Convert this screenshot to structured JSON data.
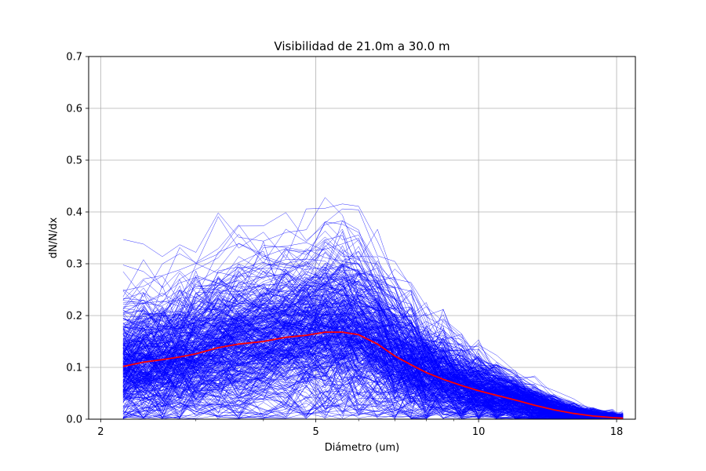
{
  "chart_data": {
    "type": "line",
    "title": "Visibilidad de 21.0m a 30.0 m",
    "xlabel": "Diámetro (um)",
    "ylabel": "dN/N/dx",
    "x_scale": "log",
    "xlim": [
      1.9,
      19.5
    ],
    "ylim": [
      0,
      0.7
    ],
    "x_ticks": [
      2,
      5,
      10,
      18
    ],
    "x_tick_labels": [
      "2",
      "5",
      "10",
      "18"
    ],
    "y_ticks": [
      0.0,
      0.1,
      0.2,
      0.3,
      0.4,
      0.5,
      0.6,
      0.7
    ],
    "y_tick_labels": [
      "0.0",
      "0.1",
      "0.2",
      "0.3",
      "0.4",
      "0.5",
      "0.6",
      "0.7"
    ],
    "grid": true,
    "individual_series_color": "#0000ff",
    "mean_series_color": "#ff0000",
    "individual_series_count": 400,
    "x": [
      2.2,
      2.4,
      2.6,
      2.8,
      3.0,
      3.3,
      3.6,
      4.0,
      4.4,
      4.8,
      5.2,
      5.6,
      6.0,
      6.5,
      7.0,
      7.5,
      8.0,
      8.6,
      9.3,
      10.0,
      10.8,
      11.7,
      12.7,
      13.8,
      15.0,
      16.3,
      17.7,
      18.5
    ],
    "series": [
      {
        "values": [
          0.102,
          0.11,
          0.115,
          0.12,
          0.126,
          0.138,
          0.145,
          0.15,
          0.158,
          0.162,
          0.168,
          0.168,
          0.163,
          0.145,
          0.122,
          0.105,
          0.09,
          0.077,
          0.065,
          0.055,
          0.046,
          0.037,
          0.027,
          0.018,
          0.011,
          0.006,
          0.003,
          0.002
        ]
      }
    ]
  }
}
